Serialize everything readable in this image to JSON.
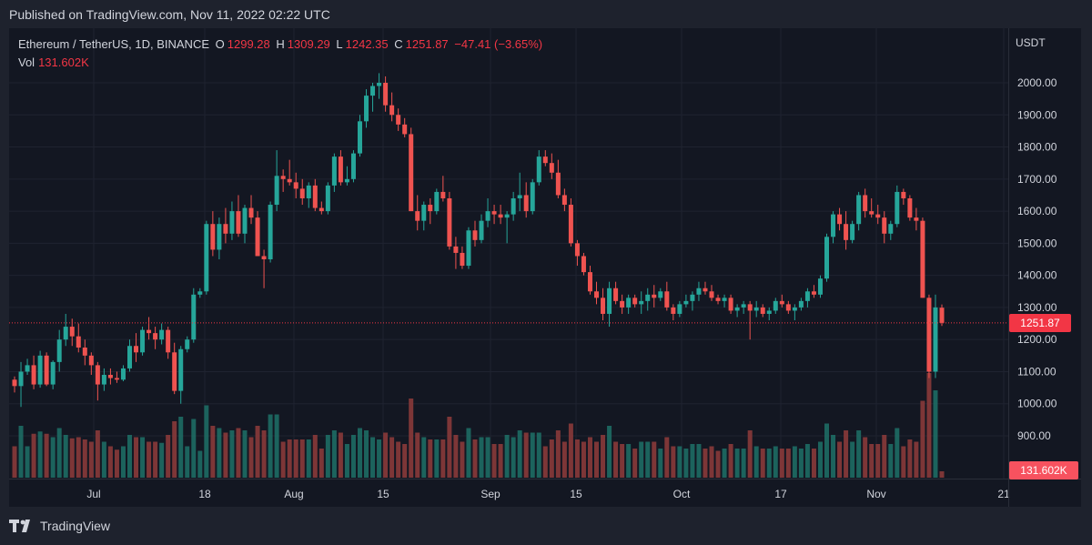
{
  "header": {
    "published": "Published on TradingView.com, Nov 11, 2022 02:22 UTC"
  },
  "legend": {
    "symbol": "Ethereum / TetherUS, 1D, BINANCE",
    "o_label": "O",
    "o_value": "1299.28",
    "h_label": "H",
    "h_value": "1309.29",
    "l_label": "L",
    "l_value": "1242.35",
    "c_label": "C",
    "c_value": "1251.87",
    "change": "−47.41 (−3.65%)",
    "vol_label": "Vol",
    "vol_value": "131.602K"
  },
  "price_axis": {
    "currency": "USDT",
    "ticks": [
      "2000.00",
      "1900.00",
      "1800.00",
      "1700.00",
      "1600.00",
      "1500.00",
      "1400.00",
      "1300.00",
      "1200.00",
      "1100.00",
      "1000.00",
      "900.00"
    ],
    "last_price_label": "1251.87",
    "last_volume_label": "131.602K"
  },
  "time_axis": {
    "labels": [
      "Jul",
      "18",
      "Aug",
      "15",
      "Sep",
      "15",
      "Oct",
      "17",
      "Nov",
      "21"
    ]
  },
  "footer": {
    "brand": "TradingView"
  },
  "colors": {
    "up": "#26a69a",
    "down": "#ef5350",
    "background": "#131722",
    "vol_up": "#1e6b64",
    "vol_down": "#8a3a3a"
  },
  "chart_data": {
    "type": "candlestick",
    "symbol": "Ethereum / TetherUS",
    "interval": "1D",
    "exchange": "BINANCE",
    "ylim": [
      850,
      2050
    ],
    "last_price": 1251.87,
    "candles_approx_ohlc": [
      [
        1075,
        1085,
        1035,
        1055
      ],
      [
        1055,
        1130,
        990,
        1100
      ],
      [
        1100,
        1140,
        1090,
        1120
      ],
      [
        1120,
        1150,
        1045,
        1060
      ],
      [
        1060,
        1165,
        1050,
        1150
      ],
      [
        1150,
        1160,
        1055,
        1060
      ],
      [
        1060,
        1135,
        1045,
        1130
      ],
      [
        1130,
        1230,
        1100,
        1200
      ],
      [
        1200,
        1280,
        1180,
        1240
      ],
      [
        1240,
        1265,
        1180,
        1210
      ],
      [
        1210,
        1250,
        1160,
        1175
      ],
      [
        1175,
        1200,
        1120,
        1150
      ],
      [
        1150,
        1160,
        1090,
        1120
      ],
      [
        1120,
        1130,
        1010,
        1060
      ],
      [
        1060,
        1110,
        1040,
        1090
      ],
      [
        1090,
        1110,
        1060,
        1080
      ],
      [
        1080,
        1100,
        1065,
        1075
      ],
      [
        1075,
        1120,
        1070,
        1110
      ],
      [
        1110,
        1200,
        1100,
        1180
      ],
      [
        1180,
        1220,
        1130,
        1160
      ],
      [
        1160,
        1240,
        1150,
        1230
      ],
      [
        1230,
        1270,
        1200,
        1220
      ],
      [
        1220,
        1240,
        1170,
        1200
      ],
      [
        1200,
        1250,
        1185,
        1230
      ],
      [
        1230,
        1240,
        1140,
        1160
      ],
      [
        1160,
        1190,
        1030,
        1040
      ],
      [
        1040,
        1180,
        1000,
        1170
      ],
      [
        1170,
        1210,
        1160,
        1200
      ],
      [
        1200,
        1360,
        1190,
        1340
      ],
      [
        1340,
        1360,
        1330,
        1350
      ],
      [
        1350,
        1570,
        1340,
        1560
      ],
      [
        1560,
        1600,
        1460,
        1480
      ],
      [
        1480,
        1580,
        1450,
        1560
      ],
      [
        1560,
        1610,
        1500,
        1530
      ],
      [
        1530,
        1630,
        1510,
        1600
      ],
      [
        1600,
        1650,
        1520,
        1530
      ],
      [
        1530,
        1620,
        1500,
        1610
      ],
      [
        1610,
        1650,
        1560,
        1580
      ],
      [
        1580,
        1600,
        1460,
        1460
      ],
      [
        1460,
        1480,
        1360,
        1450
      ],
      [
        1450,
        1630,
        1440,
        1620
      ],
      [
        1620,
        1790,
        1600,
        1710
      ],
      [
        1710,
        1730,
        1660,
        1700
      ],
      [
        1700,
        1760,
        1680,
        1690
      ],
      [
        1690,
        1720,
        1640,
        1670
      ],
      [
        1670,
        1700,
        1620,
        1640
      ],
      [
        1640,
        1690,
        1610,
        1680
      ],
      [
        1680,
        1700,
        1600,
        1610
      ],
      [
        1610,
        1630,
        1590,
        1600
      ],
      [
        1600,
        1690,
        1590,
        1680
      ],
      [
        1680,
        1780,
        1660,
        1770
      ],
      [
        1770,
        1790,
        1680,
        1690
      ],
      [
        1690,
        1740,
        1680,
        1700
      ],
      [
        1700,
        1790,
        1690,
        1780
      ],
      [
        1780,
        1900,
        1770,
        1880
      ],
      [
        1880,
        1980,
        1860,
        1960
      ],
      [
        1960,
        2000,
        1910,
        1990
      ],
      [
        1990,
        2030,
        1950,
        2000
      ],
      [
        2000,
        2020,
        1910,
        1930
      ],
      [
        1930,
        1970,
        1880,
        1900
      ],
      [
        1900,
        1920,
        1850,
        1870
      ],
      [
        1870,
        1890,
        1830,
        1840
      ],
      [
        1840,
        1860,
        1600,
        1600
      ],
      [
        1600,
        1650,
        1540,
        1570
      ],
      [
        1570,
        1630,
        1540,
        1620
      ],
      [
        1620,
        1640,
        1560,
        1600
      ],
      [
        1600,
        1670,
        1590,
        1660
      ],
      [
        1660,
        1710,
        1630,
        1640
      ],
      [
        1640,
        1660,
        1480,
        1490
      ],
      [
        1490,
        1520,
        1420,
        1470
      ],
      [
        1470,
        1490,
        1420,
        1430
      ],
      [
        1430,
        1550,
        1420,
        1540
      ],
      [
        1540,
        1570,
        1490,
        1510
      ],
      [
        1510,
        1590,
        1500,
        1570
      ],
      [
        1570,
        1640,
        1550,
        1600
      ],
      [
        1600,
        1620,
        1560,
        1590
      ],
      [
        1590,
        1620,
        1560,
        1580
      ],
      [
        1580,
        1600,
        1500,
        1590
      ],
      [
        1590,
        1660,
        1570,
        1640
      ],
      [
        1640,
        1720,
        1600,
        1650
      ],
      [
        1650,
        1690,
        1580,
        1600
      ],
      [
        1600,
        1700,
        1590,
        1690
      ],
      [
        1690,
        1790,
        1680,
        1770
      ],
      [
        1770,
        1790,
        1740,
        1750
      ],
      [
        1750,
        1780,
        1700,
        1720
      ],
      [
        1720,
        1760,
        1640,
        1650
      ],
      [
        1650,
        1670,
        1600,
        1620
      ],
      [
        1620,
        1640,
        1490,
        1500
      ],
      [
        1500,
        1510,
        1430,
        1460
      ],
      [
        1460,
        1470,
        1400,
        1410
      ],
      [
        1410,
        1430,
        1340,
        1350
      ],
      [
        1350,
        1380,
        1310,
        1330
      ],
      [
        1330,
        1360,
        1260,
        1280
      ],
      [
        1280,
        1380,
        1240,
        1360
      ],
      [
        1360,
        1380,
        1310,
        1320
      ],
      [
        1320,
        1340,
        1280,
        1300
      ],
      [
        1300,
        1340,
        1280,
        1330
      ],
      [
        1330,
        1340,
        1300,
        1310
      ],
      [
        1310,
        1350,
        1280,
        1320
      ],
      [
        1320,
        1360,
        1290,
        1340
      ],
      [
        1340,
        1370,
        1300,
        1330
      ],
      [
        1330,
        1360,
        1320,
        1350
      ],
      [
        1350,
        1380,
        1290,
        1300
      ],
      [
        1300,
        1310,
        1260,
        1280
      ],
      [
        1280,
        1320,
        1270,
        1310
      ],
      [
        1310,
        1340,
        1300,
        1320
      ],
      [
        1320,
        1350,
        1290,
        1340
      ],
      [
        1340,
        1380,
        1320,
        1360
      ],
      [
        1360,
        1380,
        1340,
        1350
      ],
      [
        1350,
        1370,
        1320,
        1330
      ],
      [
        1330,
        1340,
        1310,
        1320
      ],
      [
        1320,
        1340,
        1300,
        1330
      ],
      [
        1330,
        1340,
        1280,
        1290
      ],
      [
        1290,
        1310,
        1270,
        1300
      ],
      [
        1300,
        1320,
        1280,
        1310
      ],
      [
        1310,
        1320,
        1200,
        1290
      ],
      [
        1290,
        1320,
        1270,
        1300
      ],
      [
        1300,
        1310,
        1270,
        1280
      ],
      [
        1280,
        1300,
        1260,
        1290
      ],
      [
        1290,
        1330,
        1280,
        1320
      ],
      [
        1320,
        1340,
        1300,
        1310
      ],
      [
        1310,
        1320,
        1280,
        1290
      ],
      [
        1290,
        1310,
        1260,
        1300
      ],
      [
        1300,
        1330,
        1290,
        1320
      ],
      [
        1320,
        1360,
        1300,
        1350
      ],
      [
        1350,
        1370,
        1330,
        1340
      ],
      [
        1340,
        1400,
        1330,
        1390
      ],
      [
        1390,
        1530,
        1380,
        1520
      ],
      [
        1520,
        1600,
        1500,
        1590
      ],
      [
        1590,
        1610,
        1540,
        1560
      ],
      [
        1560,
        1600,
        1480,
        1510
      ],
      [
        1510,
        1570,
        1500,
        1560
      ],
      [
        1560,
        1660,
        1540,
        1650
      ],
      [
        1650,
        1670,
        1580,
        1600
      ],
      [
        1600,
        1640,
        1580,
        1590
      ],
      [
        1590,
        1620,
        1560,
        1580
      ],
      [
        1580,
        1600,
        1500,
        1530
      ],
      [
        1530,
        1570,
        1510,
        1560
      ],
      [
        1560,
        1680,
        1550,
        1660
      ],
      [
        1660,
        1670,
        1620,
        1640
      ],
      [
        1640,
        1650,
        1570,
        1580
      ],
      [
        1580,
        1610,
        1540,
        1570
      ],
      [
        1570,
        1580,
        1330,
        1330
      ],
      [
        1330,
        1340,
        1080,
        1100
      ],
      [
        1100,
        1340,
        1080,
        1300
      ],
      [
        1299.28,
        1309.29,
        1242.35,
        1251.87
      ]
    ],
    "volume_note": "relative volume bars beneath candles, last bar volume 131.602K"
  }
}
